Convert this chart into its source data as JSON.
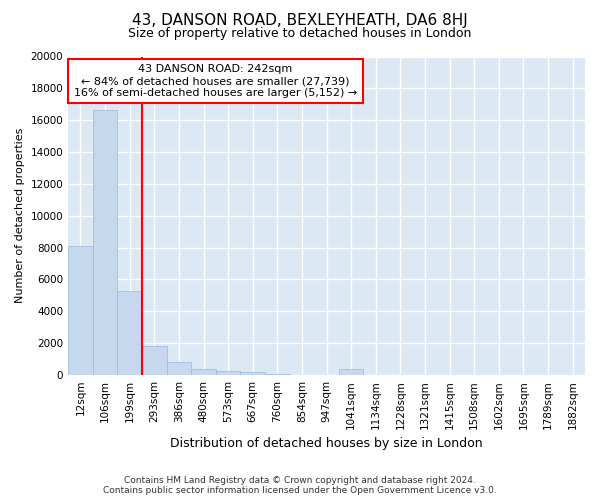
{
  "title": "43, DANSON ROAD, BEXLEYHEATH, DA6 8HJ",
  "subtitle": "Size of property relative to detached houses in London",
  "xlabel": "Distribution of detached houses by size in London",
  "ylabel": "Number of detached properties",
  "annotation_line1": "43 DANSON ROAD: 242sqm",
  "annotation_line2": "← 84% of detached houses are smaller (27,739)",
  "annotation_line3": "16% of semi-detached houses are larger (5,152) →",
  "footer_line1": "Contains HM Land Registry data © Crown copyright and database right 2024.",
  "footer_line2": "Contains public sector information licensed under the Open Government Licence v3.0.",
  "bin_labels": [
    "12sqm",
    "106sqm",
    "199sqm",
    "293sqm",
    "386sqm",
    "480sqm",
    "573sqm",
    "667sqm",
    "760sqm",
    "854sqm",
    "947sqm",
    "1041sqm",
    "1134sqm",
    "1228sqm",
    "1321sqm",
    "1415sqm",
    "1508sqm",
    "1602sqm",
    "1695sqm",
    "1789sqm",
    "1882sqm"
  ],
  "bar_values": [
    8100,
    16650,
    5300,
    1800,
    800,
    380,
    250,
    170,
    50,
    0,
    0,
    370,
    0,
    0,
    0,
    0,
    0,
    0,
    0,
    0,
    0
  ],
  "bar_color": "#c5d8ee",
  "bar_edge_color": "#9ab8d8",
  "vline_color": "red",
  "ylim": [
    0,
    20000
  ],
  "yticks": [
    0,
    2000,
    4000,
    6000,
    8000,
    10000,
    12000,
    14000,
    16000,
    18000,
    20000
  ],
  "bg_color": "#dde8f5",
  "grid_color": "white",
  "title_fontsize": 11,
  "subtitle_fontsize": 9,
  "tick_fontsize": 7.5,
  "ylabel_fontsize": 8,
  "xlabel_fontsize": 9,
  "footer_fontsize": 6.5
}
